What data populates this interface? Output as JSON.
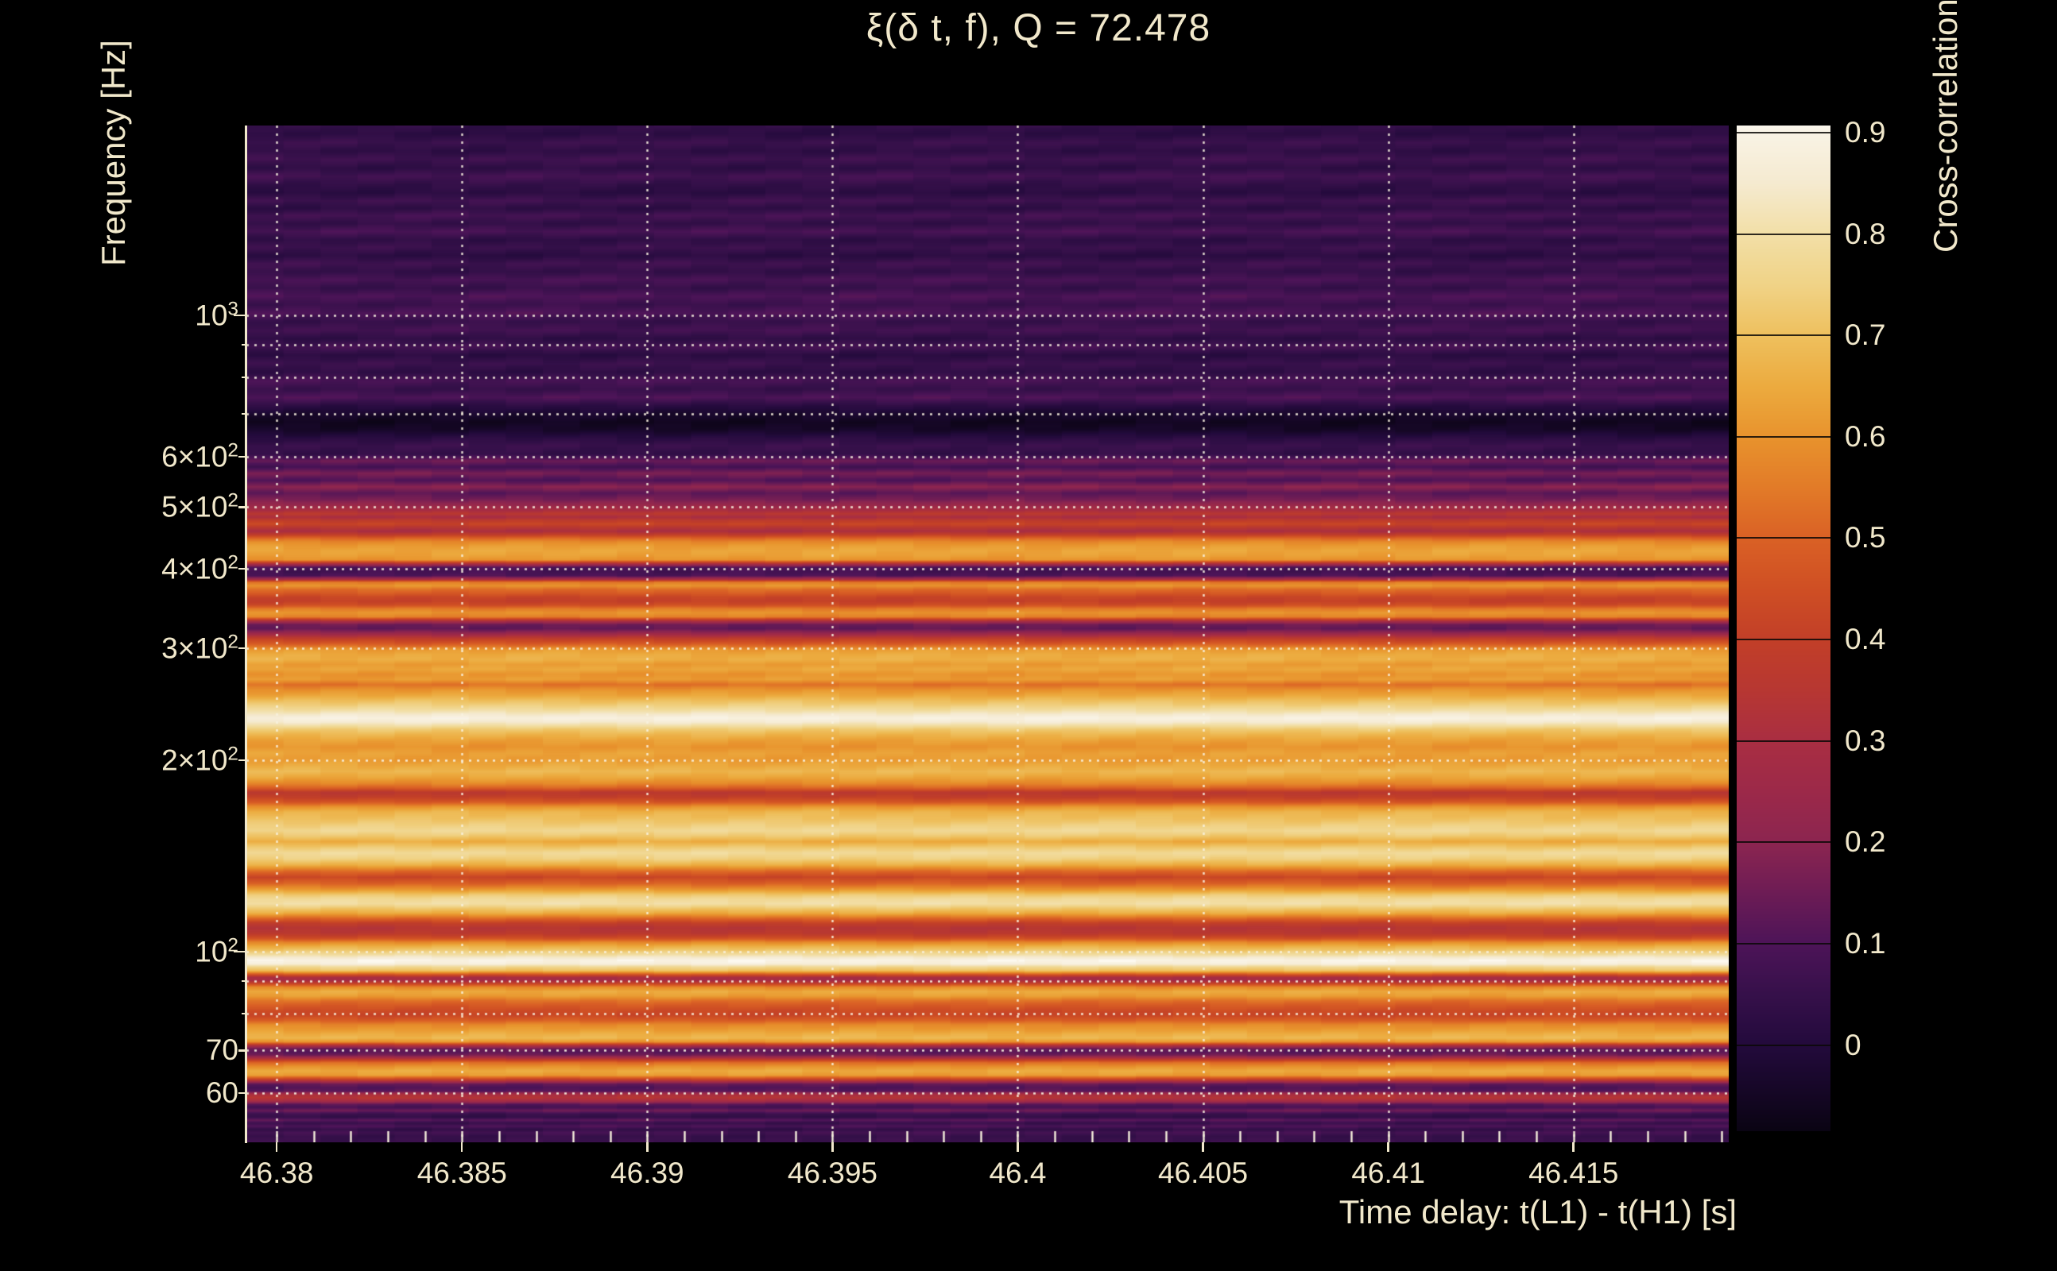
{
  "title": "ξ(δ t, f), Q = 72.478",
  "text_color": "#f1e8cb",
  "background_color": "#000000",
  "x_axis": {
    "label": "Time delay: t(L1) - t(H1) [s]",
    "range": [
      46.37918,
      46.41919
    ],
    "major_ticks": [
      {
        "value": 46.38,
        "label": "46.38"
      },
      {
        "value": 46.385,
        "label": "46.385"
      },
      {
        "value": 46.39,
        "label": "46.39"
      },
      {
        "value": 46.395,
        "label": "46.395"
      },
      {
        "value": 46.4,
        "label": "46.4"
      },
      {
        "value": 46.405,
        "label": "46.405"
      },
      {
        "value": 46.41,
        "label": "46.41"
      },
      {
        "value": 46.415,
        "label": "46.415"
      }
    ],
    "minor_tick_step": 0.001,
    "grid": true
  },
  "y_axis": {
    "label": "Frequency [Hz]",
    "scale": "log",
    "range": [
      50.2,
      1989
    ],
    "major_ticks": [
      {
        "value": 1000,
        "mantissa": "10",
        "exponent": "3",
        "major": true
      },
      {
        "value": 600,
        "mantissa": "6×10",
        "exponent": "2",
        "major": false
      },
      {
        "value": 500,
        "mantissa": "5×10",
        "exponent": "2",
        "major": false
      },
      {
        "value": 400,
        "mantissa": "4×10",
        "exponent": "2",
        "major": false
      },
      {
        "value": 300,
        "mantissa": "3×10",
        "exponent": "2",
        "major": false
      },
      {
        "value": 200,
        "mantissa": "2×10",
        "exponent": "2",
        "major": false
      },
      {
        "value": 100,
        "mantissa": "10",
        "exponent": "2",
        "major": true
      },
      {
        "value": 70,
        "mantissa": "70",
        "exponent": "",
        "major": false
      },
      {
        "value": 60,
        "mantissa": "60",
        "exponent": "",
        "major": false
      }
    ],
    "unlabeled_minor_ticks": [
      900,
      800,
      700,
      90,
      80
    ],
    "gridline_freqs": [
      1000,
      900,
      800,
      700,
      600,
      500,
      400,
      300,
      200,
      100,
      90,
      80,
      70,
      60
    ],
    "grid": true
  },
  "grid_style": {
    "color": "rgba(248,242,224,0.9)",
    "dash": [
      3,
      7
    ],
    "width": 2.4
  },
  "colorbar": {
    "label": "Cross-correlation ξ",
    "vmin": -0.085,
    "vmax": 0.907,
    "ticks": [
      {
        "value": 0.9,
        "label": "0.9"
      },
      {
        "value": 0.8,
        "label": "0.8"
      },
      {
        "value": 0.7,
        "label": "0.7"
      },
      {
        "value": 0.6,
        "label": "0.6"
      },
      {
        "value": 0.5,
        "label": "0.5"
      },
      {
        "value": 0.4,
        "label": "0.4"
      },
      {
        "value": 0.3,
        "label": "0.3"
      },
      {
        "value": 0.2,
        "label": "0.2"
      },
      {
        "value": 0.1,
        "label": "0.1"
      },
      {
        "value": 0.0,
        "label": "0"
      }
    ],
    "stops": [
      [
        -0.085,
        "#0a0413"
      ],
      [
        0.0,
        "#230a3c"
      ],
      [
        0.05,
        "#36104a"
      ],
      [
        0.1,
        "#4d1458"
      ],
      [
        0.15,
        "#6d1c55"
      ],
      [
        0.2,
        "#8c2550"
      ],
      [
        0.25,
        "#9c2949"
      ],
      [
        0.3,
        "#a92e42"
      ],
      [
        0.35,
        "#b73732"
      ],
      [
        0.4,
        "#c23f28"
      ],
      [
        0.45,
        "#cf4f24"
      ],
      [
        0.5,
        "#da6125"
      ],
      [
        0.55,
        "#e27b28"
      ],
      [
        0.6,
        "#e8932d"
      ],
      [
        0.65,
        "#ecab3f"
      ],
      [
        0.7,
        "#eec05e"
      ],
      [
        0.75,
        "#f0d387"
      ],
      [
        0.8,
        "#f2dfa7"
      ],
      [
        0.85,
        "#f5ead0"
      ],
      [
        0.9,
        "#f9f3e5"
      ],
      [
        0.907,
        "#fcf8ef"
      ]
    ]
  },
  "chart_data": {
    "type": "heatmap",
    "title": "ξ(δ t, f), Q = 72.478",
    "xlabel": "Time delay: t(L1) - t(H1) [s]",
    "ylabel": "Frequency [Hz]",
    "value_name": "Cross-correlation ξ",
    "x_range_s": [
      46.37918,
      46.41919
    ],
    "y_range_hz": [
      50.2,
      1989
    ],
    "y_scale": "log",
    "value_range": [
      -0.085,
      0.907
    ],
    "time_dependence": "cross-correlation is approximately constant along the time-delay axis; structure is horizontal frequency bands",
    "bright_bands_hz": [
      233,
      97
    ],
    "freq_profile_hz_xi": [
      [
        1989,
        0.04
      ],
      [
        1930,
        0.02
      ],
      [
        1870,
        0.06
      ],
      [
        1815,
        0.03
      ],
      [
        1760,
        0.07
      ],
      [
        1705,
        0.03
      ],
      [
        1655,
        0.08
      ],
      [
        1605,
        0.04
      ],
      [
        1560,
        0.02
      ],
      [
        1515,
        0.07
      ],
      [
        1475,
        0.03
      ],
      [
        1435,
        0.08
      ],
      [
        1395,
        0.04
      ],
      [
        1355,
        0.09
      ],
      [
        1315,
        0.03
      ],
      [
        1278,
        0.06
      ],
      [
        1242,
        0.02
      ],
      [
        1207,
        0.07
      ],
      [
        1172,
        0.04
      ],
      [
        1138,
        0.09
      ],
      [
        1105,
        0.05
      ],
      [
        1072,
        0.1
      ],
      [
        1040,
        0.06
      ],
      [
        1008,
        0.1
      ],
      [
        978,
        0.05
      ],
      [
        948,
        0.08
      ],
      [
        920,
        0.03
      ],
      [
        893,
        0.08
      ],
      [
        866,
        0.02
      ],
      [
        840,
        0.06
      ],
      [
        815,
        0.03
      ],
      [
        790,
        0.09
      ],
      [
        766,
        0.05
      ],
      [
        743,
        0.1
      ],
      [
        721,
        0.02
      ],
      [
        700,
        -0.03
      ],
      [
        680,
        -0.06
      ],
      [
        661,
        -0.04
      ],
      [
        642,
        0.02
      ],
      [
        624,
        0.06
      ],
      [
        606,
        0.04
      ],
      [
        591,
        0.15
      ],
      [
        578,
        0.08
      ],
      [
        565,
        0.17
      ],
      [
        551,
        0.1
      ],
      [
        538,
        0.2
      ],
      [
        526,
        0.12
      ],
      [
        513,
        0.17
      ],
      [
        500,
        0.26
      ],
      [
        494,
        0.3
      ],
      [
        488,
        0.36
      ],
      [
        482,
        0.3
      ],
      [
        476,
        0.38
      ],
      [
        470,
        0.42
      ],
      [
        464,
        0.35
      ],
      [
        458,
        0.3
      ],
      [
        452,
        0.4
      ],
      [
        447,
        0.5
      ],
      [
        441,
        0.58
      ],
      [
        434,
        0.62
      ],
      [
        427,
        0.64
      ],
      [
        420,
        0.63
      ],
      [
        413,
        0.6
      ],
      [
        407,
        0.3
      ],
      [
        402,
        0.1
      ],
      [
        396,
        0.08
      ],
      [
        390,
        0.1
      ],
      [
        385,
        0.28
      ],
      [
        381,
        0.55
      ],
      [
        376,
        0.6
      ],
      [
        371,
        0.52
      ],
      [
        366,
        0.48
      ],
      [
        361,
        0.42
      ],
      [
        356,
        0.4
      ],
      [
        351,
        0.44
      ],
      [
        346,
        0.55
      ],
      [
        341,
        0.6
      ],
      [
        336,
        0.56
      ],
      [
        331,
        0.3
      ],
      [
        327,
        0.15
      ],
      [
        322,
        0.13
      ],
      [
        318,
        0.2
      ],
      [
        314,
        0.3
      ],
      [
        310,
        0.4
      ],
      [
        306,
        0.46
      ],
      [
        302,
        0.54
      ],
      [
        298,
        0.62
      ],
      [
        293,
        0.65
      ],
      [
        288,
        0.66
      ],
      [
        283,
        0.62
      ],
      [
        278,
        0.64
      ],
      [
        273,
        0.6
      ],
      [
        268,
        0.62
      ],
      [
        263,
        0.53
      ],
      [
        258,
        0.6
      ],
      [
        253,
        0.64
      ],
      [
        248,
        0.7
      ],
      [
        244,
        0.74
      ],
      [
        240,
        0.79
      ],
      [
        236,
        0.85
      ],
      [
        233,
        0.89
      ],
      [
        230,
        0.86
      ],
      [
        227,
        0.8
      ],
      [
        224,
        0.73
      ],
      [
        220,
        0.68
      ],
      [
        215,
        0.63
      ],
      [
        210,
        0.6
      ],
      [
        205,
        0.63
      ],
      [
        200,
        0.62
      ],
      [
        196,
        0.65
      ],
      [
        192,
        0.68
      ],
      [
        188,
        0.64
      ],
      [
        184,
        0.58
      ],
      [
        181,
        0.5
      ],
      [
        178,
        0.36
      ],
      [
        175,
        0.4
      ],
      [
        172,
        0.47
      ],
      [
        169,
        0.6
      ],
      [
        166,
        0.67
      ],
      [
        162,
        0.7
      ],
      [
        158,
        0.74
      ],
      [
        155,
        0.77
      ],
      [
        152,
        0.72
      ],
      [
        149,
        0.65
      ],
      [
        146,
        0.72
      ],
      [
        143,
        0.78
      ],
      [
        140,
        0.74
      ],
      [
        137,
        0.66
      ],
      [
        134,
        0.52
      ],
      [
        131,
        0.42
      ],
      [
        128,
        0.5
      ],
      [
        125,
        0.62
      ],
      [
        123,
        0.72
      ],
      [
        121,
        0.78
      ],
      [
        119,
        0.8
      ],
      [
        117,
        0.72
      ],
      [
        115,
        0.65
      ],
      [
        113,
        0.52
      ],
      [
        111,
        0.4
      ],
      [
        109,
        0.34
      ],
      [
        107,
        0.36
      ],
      [
        105,
        0.45
      ],
      [
        103.5,
        0.58
      ],
      [
        102,
        0.66
      ],
      [
        100.5,
        0.72
      ],
      [
        99.2,
        0.78
      ],
      [
        98.2,
        0.84
      ],
      [
        97,
        0.9
      ],
      [
        95.8,
        0.88
      ],
      [
        94.6,
        0.76
      ],
      [
        93.4,
        0.7
      ],
      [
        92.2,
        0.48
      ],
      [
        91.2,
        0.3
      ],
      [
        90.2,
        0.28
      ],
      [
        89.2,
        0.4
      ],
      [
        88,
        0.58
      ],
      [
        86.6,
        0.65
      ],
      [
        85.2,
        0.62
      ],
      [
        83.8,
        0.53
      ],
      [
        82.4,
        0.48
      ],
      [
        81,
        0.44
      ],
      [
        79.6,
        0.42
      ],
      [
        78.2,
        0.48
      ],
      [
        76.8,
        0.58
      ],
      [
        75.4,
        0.62
      ],
      [
        74.2,
        0.66
      ],
      [
        73.2,
        0.68
      ],
      [
        72.2,
        0.6
      ],
      [
        71.2,
        0.3
      ],
      [
        70.4,
        0.14
      ],
      [
        69.6,
        0.12
      ],
      [
        68.8,
        0.16
      ],
      [
        68,
        0.32
      ],
      [
        67,
        0.52
      ],
      [
        66,
        0.6
      ],
      [
        65,
        0.65
      ],
      [
        64,
        0.62
      ],
      [
        63,
        0.4
      ],
      [
        62,
        0.14
      ],
      [
        61.2,
        0.1
      ],
      [
        60.4,
        0.12
      ],
      [
        59.7,
        0.3
      ],
      [
        59,
        0.34
      ],
      [
        58.3,
        0.28
      ],
      [
        57.6,
        0.12
      ],
      [
        57,
        0.08
      ],
      [
        56.3,
        0.15
      ],
      [
        55.6,
        0.06
      ],
      [
        55,
        0.04
      ],
      [
        54.4,
        0.12
      ],
      [
        53.8,
        0.05
      ],
      [
        53.2,
        0.1
      ],
      [
        52.6,
        0.04
      ],
      [
        52,
        0.08
      ],
      [
        51.3,
        0.05
      ],
      [
        50.2,
        0.06
      ]
    ]
  }
}
